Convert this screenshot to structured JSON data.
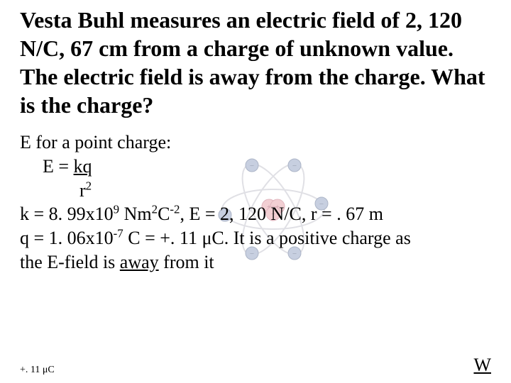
{
  "title": "Vesta Buhl measures an electric field of 2, 120 N/C, 67 cm from a charge of unknown value.  The electric field is away from the charge.  What is the charge?",
  "line1": "E for a point charge:",
  "line2_pre": "E = ",
  "line2_under": "kq",
  "line3_pre": "r",
  "line3_sup": "2",
  "line4_a": "k = 8. 99x10",
  "line4_sup1": "9",
  "line4_b": " Nm",
  "line4_sup2": "2",
  "line4_c": "C",
  "line4_sup3": "-2",
  "line4_d": ", E = 2, 120 N/C, r = . 67 m",
  "line5_a": "q = 1. 06x10",
  "line5_sup1": "-7",
  "line5_b": " C = +. 11 ",
  "line5_mu": "μ",
  "line5_c": "C.  It is a positive charge as",
  "line6_a": "the E-field is ",
  "line6_under": "away",
  "line6_b": " from it",
  "footer_left_a": "+. 11 ",
  "footer_left_mu": "μ",
  "footer_left_b": "C",
  "footer_right": "W",
  "atom": {
    "orbit_stroke": "#c8c8d0",
    "orbit_fill": "none",
    "electron_fill": "#9aa8c8",
    "electron_stroke": "#6a7a9a",
    "nucleus_fill": "#e8a8b0",
    "nucleus_stroke": "#c87888",
    "plus_color": "#a05060",
    "minus_color": "#405070"
  }
}
